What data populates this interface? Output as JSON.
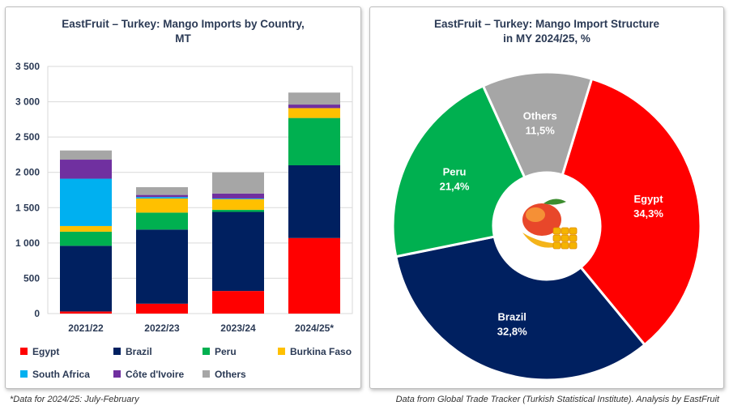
{
  "bar_chart_title_line1": "EastFruit – Turkey: Mango Imports by Country,",
  "bar_chart_title_line2": "MT",
  "pie_chart_title_line1": "EastFruit – Turkey: Mango Import Structure",
  "pie_chart_title_line2": "in MY 2024/25, %",
  "footnote_left": "*Data for 2024/25: July-February",
  "footnote_right": "Data from Global Trade Tracker (Turkish Statistical Institute). Analysis by EastFruit",
  "colors": {
    "Egypt": "#ff0000",
    "Brazil": "#002060",
    "Peru": "#00b050",
    "Burkina Faso": "#ffc000",
    "South Africa": "#00b0f0",
    "Cote d'Ivoire": "#7030a0",
    "Others": "#a6a6a6"
  },
  "legend": [
    {
      "label": "Egypt",
      "color": "#ff0000"
    },
    {
      "label": "Brazil",
      "color": "#002060"
    },
    {
      "label": "Peru",
      "color": "#00b050"
    },
    {
      "label": "Burkina Faso",
      "color": "#ffc000"
    },
    {
      "label": "South Africa",
      "color": "#00b0f0"
    },
    {
      "label": "Côte d'Ivoire",
      "color": "#7030a0"
    },
    {
      "label": "Others",
      "color": "#a6a6a6"
    }
  ],
  "chart_data": [
    {
      "type": "bar",
      "stacked": true,
      "title": "EastFruit – Turkey: Mango Imports by Country, MT",
      "categories": [
        "2021/22",
        "2022/23",
        "2023/24",
        "2024/25*"
      ],
      "ylim": [
        0,
        3500
      ],
      "yticks": [
        0,
        500,
        1000,
        1500,
        2000,
        2500,
        3000,
        3500
      ],
      "ytick_labels": [
        "0",
        "500",
        "1 000",
        "1 500",
        "2 000",
        "2 500",
        "3 000",
        "3 500"
      ],
      "grid": true,
      "series": [
        {
          "name": "Egypt",
          "values": [
            30,
            140,
            320,
            1070
          ]
        },
        {
          "name": "Brazil",
          "values": [
            930,
            1050,
            1120,
            1030
          ]
        },
        {
          "name": "Peru",
          "values": [
            200,
            240,
            30,
            670
          ]
        },
        {
          "name": "Burkina Faso",
          "values": [
            80,
            200,
            150,
            140
          ]
        },
        {
          "name": "South Africa",
          "values": [
            670,
            20,
            10,
            0
          ]
        },
        {
          "name": "Côte d'Ivoire",
          "values": [
            270,
            30,
            70,
            50
          ]
        },
        {
          "name": "Others",
          "values": [
            130,
            110,
            300,
            170
          ]
        }
      ]
    },
    {
      "type": "pie",
      "title": "EastFruit – Turkey: Mango Import Structure in MY 2024/25, %",
      "slices": [
        {
          "name": "Egypt",
          "value": 34.3,
          "label": "34,3%"
        },
        {
          "name": "Brazil",
          "value": 32.8,
          "label": "32,8%"
        },
        {
          "name": "Peru",
          "value": 21.4,
          "label": "21,4%"
        },
        {
          "name": "Others",
          "value": 11.5,
          "label": "11,5%"
        }
      ]
    }
  ]
}
